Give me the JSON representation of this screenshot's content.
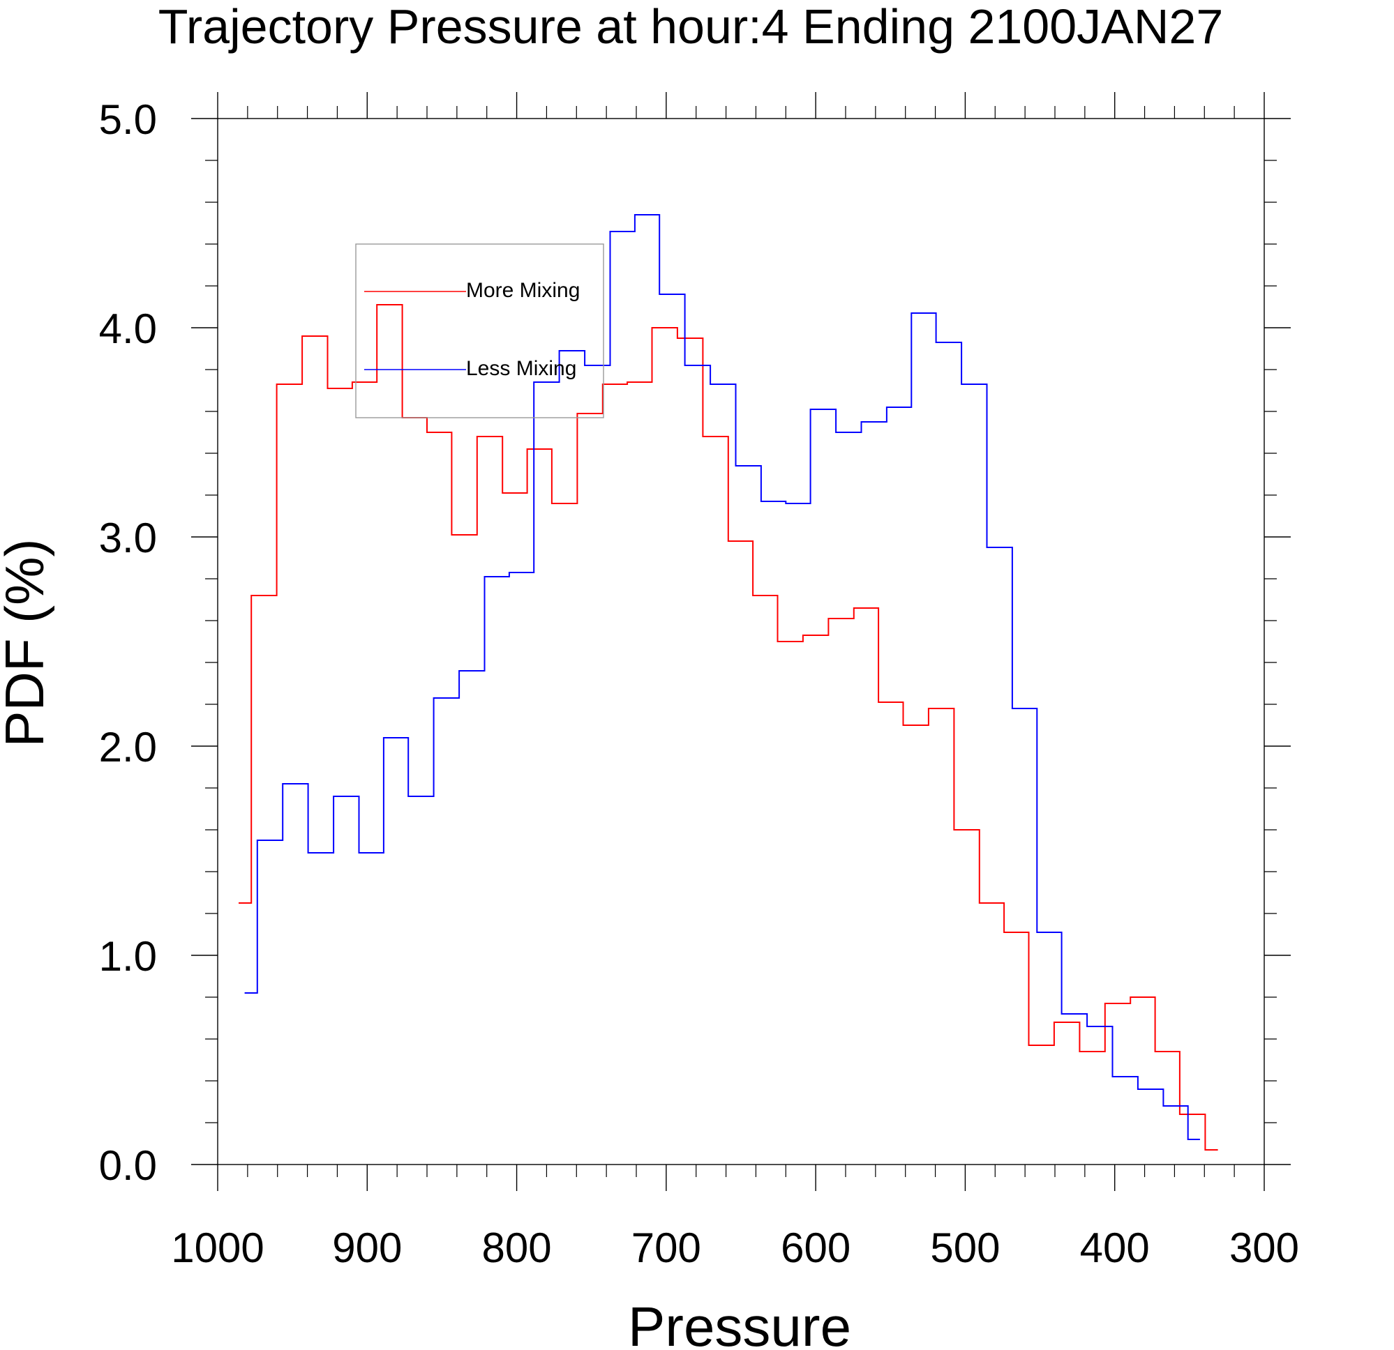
{
  "chart_data": {
    "type": "line",
    "title": "Trajectory Pressure at hour:4 Ending 2100JAN27",
    "xlabel": "Pressure",
    "ylabel": "PDF (%)",
    "xlim": [
      1000,
      300
    ],
    "ylim": [
      0,
      5
    ],
    "x_reversed": true,
    "x_ticks": [
      1000,
      900,
      800,
      700,
      600,
      500,
      400,
      300
    ],
    "y_ticks": [
      0,
      1,
      2,
      3,
      4,
      5
    ],
    "x_tick_labels": [
      "1000",
      "900",
      "800",
      "700",
      "600",
      "500",
      "400",
      "300"
    ],
    "y_tick_labels": [
      "0.0",
      "1.0",
      "2.0",
      "3.0",
      "4.0",
      "5.0"
    ],
    "legend_position": "upper-left",
    "series": [
      {
        "name": "More Mixing",
        "color": "#ff0000",
        "x": [
          986,
          969,
          952,
          935,
          918,
          902,
          885,
          868,
          852,
          835,
          818,
          801,
          785,
          768,
          751,
          734,
          718,
          701,
          684,
          667,
          650,
          634,
          617,
          600,
          583,
          566,
          550,
          533,
          516,
          499,
          482,
          466,
          449,
          432,
          415,
          398,
          381,
          365,
          348,
          331
        ],
        "values": [
          1.25,
          2.72,
          3.73,
          3.96,
          3.71,
          3.74,
          4.11,
          3.57,
          3.5,
          3.01,
          3.48,
          3.21,
          3.42,
          3.16,
          3.59,
          3.73,
          3.74,
          4.0,
          3.95,
          3.48,
          2.98,
          2.72,
          2.5,
          2.53,
          2.61,
          2.66,
          2.21,
          2.1,
          2.18,
          1.6,
          1.25,
          1.11,
          0.57,
          0.68,
          0.54,
          0.77,
          0.8,
          0.54,
          0.24,
          0.07
        ]
      },
      {
        "name": "Less Mixing",
        "color": "#0000ff",
        "x": [
          982,
          965,
          948,
          931,
          914,
          897,
          881,
          864,
          847,
          830,
          813,
          797,
          780,
          763,
          746,
          729,
          713,
          696,
          679,
          662,
          645,
          628,
          612,
          595,
          578,
          561,
          544,
          528,
          511,
          494,
          477,
          460,
          444,
          427,
          410,
          393,
          376,
          359,
          343
        ],
        "values": [
          0.82,
          1.55,
          1.82,
          1.49,
          1.76,
          1.49,
          2.04,
          1.76,
          2.23,
          2.36,
          2.81,
          2.83,
          3.74,
          3.89,
          3.82,
          4.46,
          4.54,
          4.16,
          3.82,
          3.73,
          3.34,
          3.17,
          3.16,
          3.61,
          3.5,
          3.55,
          3.62,
          4.07,
          3.93,
          3.73,
          2.95,
          2.18,
          1.11,
          0.72,
          0.66,
          0.42,
          0.36,
          0.28,
          0.12
        ]
      }
    ]
  },
  "colors": {
    "axis": "#000000",
    "legend_border": "#999999",
    "more_mixing": "#ff0000",
    "less_mixing": "#0000ff"
  }
}
